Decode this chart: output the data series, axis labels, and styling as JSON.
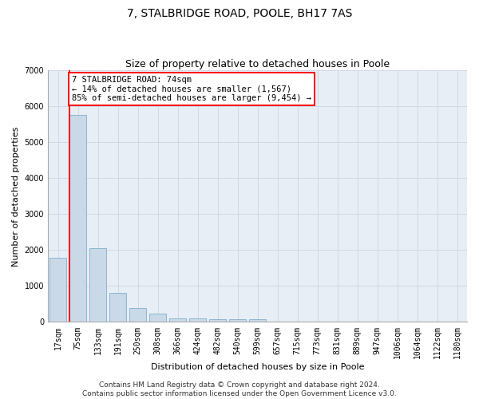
{
  "title": "7, STALBRIDGE ROAD, POOLE, BH17 7AS",
  "subtitle": "Size of property relative to detached houses in Poole",
  "xlabel": "Distribution of detached houses by size in Poole",
  "ylabel": "Number of detached properties",
  "categories": [
    "17sqm",
    "75sqm",
    "133sqm",
    "191sqm",
    "250sqm",
    "308sqm",
    "366sqm",
    "424sqm",
    "482sqm",
    "540sqm",
    "599sqm",
    "657sqm",
    "715sqm",
    "773sqm",
    "831sqm",
    "889sqm",
    "947sqm",
    "1006sqm",
    "1064sqm",
    "1122sqm",
    "1180sqm"
  ],
  "values": [
    1780,
    5750,
    2050,
    820,
    380,
    230,
    110,
    110,
    70,
    70,
    70,
    0,
    0,
    0,
    0,
    0,
    0,
    0,
    0,
    0,
    0
  ],
  "bar_color": "#c9d9e8",
  "bar_edge_color": "#7fafd0",
  "grid_color": "#d0d8e8",
  "background_color": "#e8eef5",
  "annotation_text": "7 STALBRIDGE ROAD: 74sqm\n← 14% of detached houses are smaller (1,567)\n85% of semi-detached houses are larger (9,454) →",
  "annotation_box_color": "white",
  "annotation_box_edge_color": "red",
  "marker_line_color": "red",
  "marker_bin_index": 1,
  "bar_width": 0.85,
  "ylim": [
    0,
    7000
  ],
  "yticks": [
    0,
    1000,
    2000,
    3000,
    4000,
    5000,
    6000,
    7000
  ],
  "footer_line1": "Contains HM Land Registry data © Crown copyright and database right 2024.",
  "footer_line2": "Contains public sector information licensed under the Open Government Licence v3.0.",
  "title_fontsize": 10,
  "subtitle_fontsize": 9,
  "axis_label_fontsize": 8,
  "tick_fontsize": 7,
  "annotation_fontsize": 7.5,
  "footer_fontsize": 6.5
}
